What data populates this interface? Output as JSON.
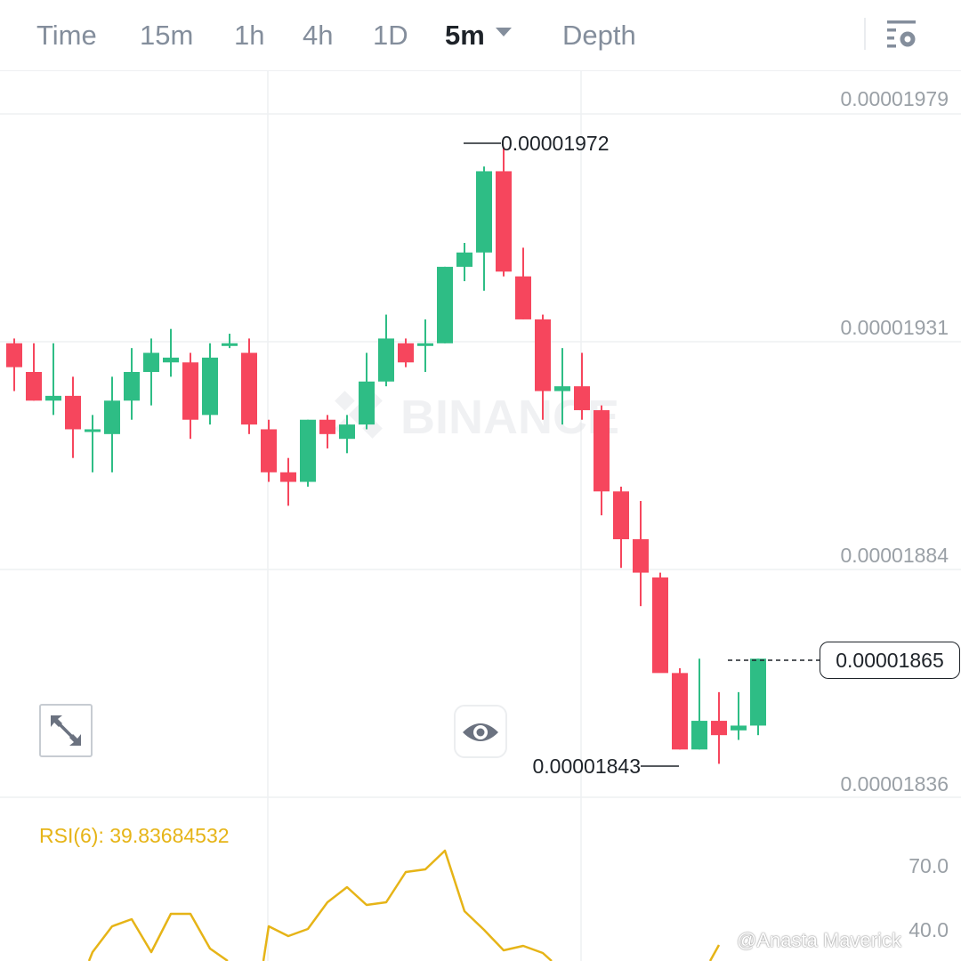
{
  "tabs": [
    {
      "label": "Time",
      "active": false
    },
    {
      "label": "15m",
      "active": false
    },
    {
      "label": "1h",
      "active": false
    },
    {
      "label": "4h",
      "active": false
    },
    {
      "label": "1D",
      "active": false
    },
    {
      "label": "5m",
      "active": true
    },
    {
      "label": "Depth",
      "active": false
    }
  ],
  "icons": {
    "settings": "chart-settings-icon",
    "expand": "expand-icon",
    "eye": "eye-icon",
    "dropdown": "chevron-down-icon"
  },
  "colors": {
    "up": "#2ebd85",
    "down": "#f6465d",
    "rsi": "#e6b417",
    "axis_text": "#9aa0a6",
    "grid": "#eef0f2"
  },
  "chart_data": {
    "type": "candlestick",
    "interval": "5m",
    "watermark": "BINANCE",
    "y_axis_ticks": [
      "0.00001979",
      "0.00001931",
      "0.00001884",
      "0.00001836"
    ],
    "high_marker": "0.00001972",
    "low_marker": "0.00001843",
    "last_price": "0.00001865",
    "candles": [
      {
        "o": 1.931e-05,
        "h": 1.932e-05,
        "l": 1.921e-05,
        "c": 1.926e-05
      },
      {
        "o": 1.925e-05,
        "h": 1.931e-05,
        "l": 1.919e-05,
        "c": 1.919e-05
      },
      {
        "o": 1.919e-05,
        "h": 1.931e-05,
        "l": 1.916e-05,
        "c": 1.92e-05
      },
      {
        "o": 1.92e-05,
        "h": 1.924e-05,
        "l": 1.907e-05,
        "c": 1.913e-05
      },
      {
        "o": 1.913e-05,
        "h": 1.916e-05,
        "l": 1.904e-05,
        "c": 1.913e-05
      },
      {
        "o": 1.912e-05,
        "h": 1.924e-05,
        "l": 1.904e-05,
        "c": 1.919e-05
      },
      {
        "o": 1.919e-05,
        "h": 1.93e-05,
        "l": 1.915e-05,
        "c": 1.925e-05
      },
      {
        "o": 1.925e-05,
        "h": 1.932e-05,
        "l": 1.918e-05,
        "c": 1.929e-05
      },
      {
        "o": 1.927e-05,
        "h": 1.934e-05,
        "l": 1.924e-05,
        "c": 1.928e-05
      },
      {
        "o": 1.927e-05,
        "h": 1.929e-05,
        "l": 1.911e-05,
        "c": 1.915e-05
      },
      {
        "o": 1.916e-05,
        "h": 1.931e-05,
        "l": 1.914e-05,
        "c": 1.928e-05
      },
      {
        "o": 1.931e-05,
        "h": 1.933e-05,
        "l": 1.93e-05,
        "c": 1.931e-05
      },
      {
        "o": 1.929e-05,
        "h": 1.932e-05,
        "l": 1.912e-05,
        "c": 1.914e-05
      },
      {
        "o": 1.913e-05,
        "h": 1.915e-05,
        "l": 1.902e-05,
        "c": 1.904e-05
      },
      {
        "o": 1.904e-05,
        "h": 1.907e-05,
        "l": 1.897e-05,
        "c": 1.902e-05
      },
      {
        "o": 1.902e-05,
        "h": 1.915e-05,
        "l": 1.901e-05,
        "c": 1.915e-05
      },
      {
        "o": 1.915e-05,
        "h": 1.916e-05,
        "l": 1.909e-05,
        "c": 1.912e-05
      },
      {
        "o": 1.911e-05,
        "h": 1.916e-05,
        "l": 1.908e-05,
        "c": 1.914e-05
      },
      {
        "o": 1.914e-05,
        "h": 1.929e-05,
        "l": 1.913e-05,
        "c": 1.923e-05
      },
      {
        "o": 1.923e-05,
        "h": 1.937e-05,
        "l": 1.922e-05,
        "c": 1.932e-05
      },
      {
        "o": 1.931e-05,
        "h": 1.932e-05,
        "l": 1.926e-05,
        "c": 1.927e-05
      },
      {
        "o": 1.931e-05,
        "h": 1.936e-05,
        "l": 1.925e-05,
        "c": 1.931e-05
      },
      {
        "o": 1.931e-05,
        "h": 1.947e-05,
        "l": 1.931e-05,
        "c": 1.947e-05
      },
      {
        "o": 1.947e-05,
        "h": 1.952e-05,
        "l": 1.944e-05,
        "c": 1.95e-05
      },
      {
        "o": 1.95e-05,
        "h": 1.968e-05,
        "l": 1.942e-05,
        "c": 1.967e-05
      },
      {
        "o": 1.967e-05,
        "h": 1.972e-05,
        "l": 1.945e-05,
        "c": 1.946e-05
      },
      {
        "o": 1.945e-05,
        "h": 1.951e-05,
        "l": 1.936e-05,
        "c": 1.936e-05
      },
      {
        "o": 1.936e-05,
        "h": 1.937e-05,
        "l": 1.915e-05,
        "c": 1.921e-05
      },
      {
        "o": 1.921e-05,
        "h": 1.93e-05,
        "l": 1.914e-05,
        "c": 1.922e-05
      },
      {
        "o": 1.922e-05,
        "h": 1.929e-05,
        "l": 1.915e-05,
        "c": 1.917e-05
      },
      {
        "o": 1.917e-05,
        "h": 1.918e-05,
        "l": 1.895e-05,
        "c": 1.9e-05
      },
      {
        "o": 1.9e-05,
        "h": 1.901e-05,
        "l": 1.884e-05,
        "c": 1.89e-05
      },
      {
        "o": 1.89e-05,
        "h": 1.898e-05,
        "l": 1.876e-05,
        "c": 1.883e-05
      },
      {
        "o": 1.882e-05,
        "h": 1.883e-05,
        "l": 1.863e-05,
        "c": 1.862e-05
      },
      {
        "o": 1.862e-05,
        "h": 1.863e-05,
        "l": 1.846e-05,
        "c": 1.846e-05
      },
      {
        "o": 1.846e-05,
        "h": 1.865e-05,
        "l": 1.846e-05,
        "c": 1.852e-05
      },
      {
        "o": 1.852e-05,
        "h": 1.858e-05,
        "l": 1.843e-05,
        "c": 1.849e-05
      },
      {
        "o": 1.85e-05,
        "h": 1.858e-05,
        "l": 1.848e-05,
        "c": 1.851e-05
      },
      {
        "o": 1.851e-05,
        "h": 1.865e-05,
        "l": 1.849e-05,
        "c": 1.865e-05
      }
    ]
  },
  "rsi": {
    "label": "RSI(6): 39.83684532",
    "ticks": [
      "70.0",
      "40.0"
    ]
  },
  "user_watermark": "@Anasta Maverick"
}
